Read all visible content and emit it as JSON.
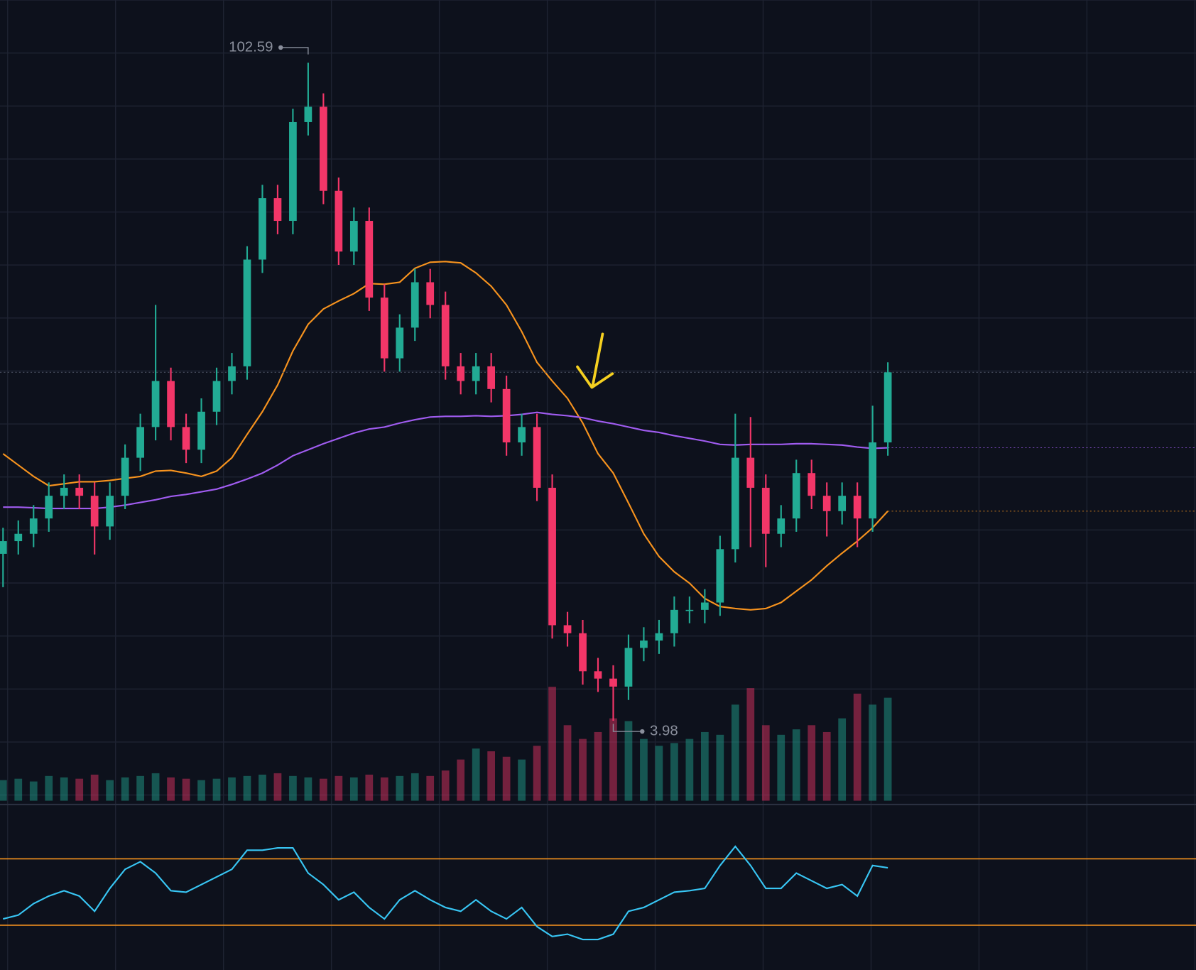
{
  "chart_data": {
    "type": "candlestick",
    "ylim": [
      -8,
      112
    ],
    "colors": {
      "up": "#22ab94",
      "down": "#f23668"
    },
    "open": [
      29.0,
      30.9,
      32.0,
      34.3,
      37.7,
      38.9,
      37.7,
      33.1,
      37.7,
      43.4,
      48.0,
      54.9,
      48.0,
      44.6,
      50.3,
      54.9,
      57.1,
      73.1,
      82.3,
      78.9,
      93.7,
      96.0,
      83.4,
      74.3,
      78.9,
      67.4,
      58.3,
      62.9,
      69.7,
      66.3,
      57.1,
      54.9,
      57.1,
      53.7,
      45.7,
      48.0,
      38.9,
      18.3,
      17.1,
      11.4,
      10.3,
      9.1,
      14.9,
      16.0,
      17.1,
      20.6,
      20.6,
      21.7,
      29.7,
      43.4,
      38.9,
      32.0,
      34.3,
      41.1,
      37.7,
      35.4,
      37.7,
      34.3,
      45.7
    ],
    "high": [
      32.9,
      34.0,
      36.3,
      39.7,
      40.9,
      40.9,
      39.7,
      39.7,
      45.4,
      50.0,
      66.3,
      56.9,
      50.0,
      52.3,
      56.9,
      59.1,
      75.1,
      84.3,
      84.3,
      95.7,
      102.59,
      98.0,
      85.4,
      80.9,
      80.9,
      69.4,
      64.9,
      71.7,
      71.7,
      68.3,
      59.1,
      59.1,
      59.1,
      55.7,
      50.0,
      50.0,
      40.9,
      20.3,
      19.1,
      13.4,
      12.3,
      16.9,
      18.0,
      19.1,
      22.6,
      22.6,
      23.7,
      31.7,
      50.0,
      49.5,
      40.9,
      36.3,
      43.1,
      43.1,
      39.7,
      39.7,
      39.7,
      51.2,
      57.7
    ],
    "low": [
      24.0,
      28.9,
      30.0,
      32.3,
      35.7,
      35.7,
      28.9,
      31.1,
      35.7,
      41.4,
      46.0,
      46.0,
      42.6,
      42.6,
      48.3,
      52.9,
      55.1,
      71.1,
      76.9,
      76.9,
      91.7,
      81.4,
      72.3,
      72.3,
      65.4,
      56.3,
      56.3,
      60.9,
      64.3,
      55.1,
      52.9,
      52.9,
      51.7,
      43.7,
      43.7,
      36.9,
      16.3,
      15.1,
      9.4,
      8.3,
      3.98,
      7.1,
      12.9,
      14.0,
      15.1,
      18.6,
      18.6,
      19.7,
      27.7,
      30.0,
      27.0,
      30.0,
      32.3,
      35.7,
      31.6,
      33.4,
      30.0,
      32.3,
      43.7
    ],
    "close": [
      30.9,
      32.0,
      34.3,
      37.7,
      38.9,
      37.7,
      33.1,
      37.7,
      43.4,
      48.0,
      54.9,
      48.0,
      44.6,
      50.3,
      54.9,
      57.1,
      73.1,
      82.3,
      78.9,
      93.7,
      96.0,
      83.4,
      74.3,
      78.9,
      67.4,
      58.3,
      62.9,
      69.7,
      66.3,
      57.1,
      54.9,
      57.1,
      53.7,
      45.7,
      48.0,
      38.9,
      18.3,
      17.1,
      11.4,
      10.3,
      9.1,
      14.9,
      16.0,
      17.1,
      20.6,
      20.6,
      21.7,
      29.7,
      43.4,
      38.9,
      32.0,
      34.3,
      41.1,
      37.7,
      35.4,
      37.7,
      34.3,
      45.7,
      56.2
    ],
    "volume_ylim": [
      0,
      100
    ],
    "volume": [
      15,
      16,
      14,
      18,
      17,
      16,
      19,
      15,
      17,
      18,
      20,
      17,
      16,
      15,
      16,
      17,
      18,
      19,
      20,
      18,
      17,
      16,
      18,
      17,
      19,
      17,
      18,
      20,
      18,
      22,
      30,
      38,
      36,
      32,
      30,
      40,
      83,
      55,
      45,
      50,
      60,
      58,
      45,
      40,
      42,
      45,
      50,
      48,
      70,
      82,
      55,
      48,
      52,
      55,
      50,
      60,
      78,
      70,
      75
    ],
    "ma": [
      {
        "color": "#f7931e",
        "values": [
          44.0,
          42.3,
          40.6,
          39.2,
          39.5,
          39.8,
          39.8,
          40.0,
          40.3,
          40.6,
          41.4,
          41.5,
          41.1,
          40.6,
          41.4,
          43.4,
          46.9,
          50.3,
          54.3,
          59.4,
          63.4,
          65.7,
          66.9,
          68.0,
          69.5,
          69.4,
          69.7,
          71.8,
          72.7,
          72.8,
          72.6,
          71.1,
          69.1,
          66.3,
          62.3,
          57.7,
          54.9,
          52.3,
          48.6,
          44.0,
          41.1,
          36.6,
          32.0,
          28.6,
          26.3,
          24.6,
          22.3,
          21.1,
          20.8,
          20.6,
          20.8,
          21.7,
          23.4,
          25.1,
          27.2,
          29.1,
          30.9,
          32.9,
          35.4
        ]
      },
      {
        "color": "#a05cf0",
        "values": [
          36.0,
          36.0,
          35.9,
          35.8,
          35.8,
          35.8,
          35.8,
          36.0,
          36.3,
          36.7,
          37.1,
          37.6,
          37.9,
          38.3,
          38.7,
          39.4,
          40.2,
          41.1,
          42.3,
          43.7,
          44.6,
          45.5,
          46.3,
          47.1,
          47.7,
          48.0,
          48.6,
          49.1,
          49.5,
          49.6,
          49.6,
          49.7,
          49.6,
          49.7,
          49.9,
          50.2,
          49.9,
          49.7,
          49.4,
          48.9,
          48.5,
          48.0,
          47.5,
          47.2,
          46.7,
          46.3,
          45.9,
          45.4,
          45.3,
          45.4,
          45.4,
          45.4,
          45.5,
          45.5,
          45.4,
          45.3,
          45.0,
          44.8,
          44.9
        ]
      }
    ],
    "rsi": {
      "ylim": [
        3,
        100
      ],
      "color": "#38c6f4",
      "levels": [
        70,
        30
      ],
      "level_color": "#f7931e",
      "values": [
        33.8,
        36.1,
        43.0,
        47.6,
        50.8,
        47.6,
        38.4,
        52.2,
        63.7,
        68.3,
        61.4,
        50.8,
        49.9,
        54.5,
        59.1,
        63.7,
        75.2,
        75.2,
        76.6,
        76.6,
        61.4,
        54.5,
        45.3,
        49.9,
        40.7,
        33.8,
        45.3,
        50.8,
        45.3,
        40.7,
        38.4,
        45.3,
        38.4,
        33.8,
        40.7,
        29.2,
        23.2,
        24.6,
        21.4,
        21.4,
        24.6,
        38.4,
        40.7,
        45.3,
        49.9,
        50.8,
        52.2,
        66.0,
        77.5,
        66.0,
        52.2,
        52.2,
        61.4,
        56.8,
        52.2,
        54.5,
        47.6,
        66.0,
        64.6
      ]
    }
  }
}
